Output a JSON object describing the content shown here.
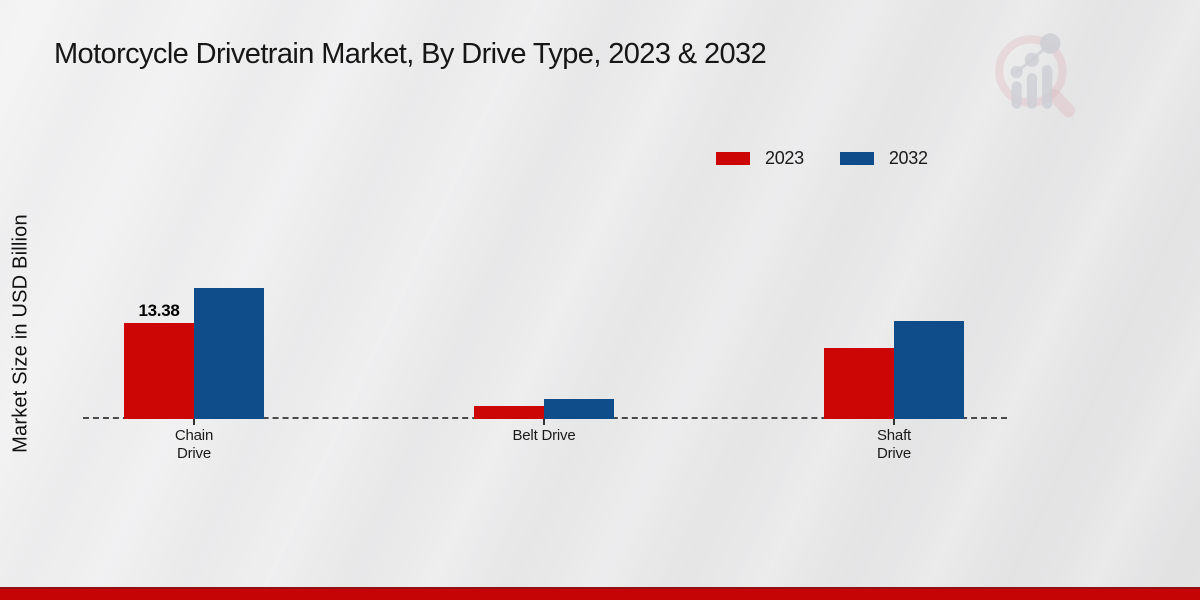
{
  "header": {
    "title": "Motorcycle Drivetrain Market, By Drive Type, 2023 & 2032"
  },
  "watermark": {
    "name": "market-research-magnifier-logo",
    "ring_color": "#d58f98",
    "bars_color": "#b9bcc4"
  },
  "chart_data": {
    "type": "bar",
    "title": "Motorcycle Drivetrain Market, By Drive Type, 2023 & 2032",
    "xlabel": "",
    "ylabel": "Market Size in USD Billion",
    "categories": [
      "Chain Drive",
      "Belt Drive",
      "Shaft Drive"
    ],
    "category_label_lines": [
      [
        "Chain",
        "Drive"
      ],
      [
        "Belt Drive"
      ],
      [
        "Shaft",
        "Drive"
      ]
    ],
    "series": [
      {
        "name": "2023",
        "color": "#cc0605",
        "values": [
          13.38,
          1.85,
          9.9
        ]
      },
      {
        "name": "2032",
        "color": "#0f4c8a",
        "values": [
          18.2,
          2.73,
          13.55
        ]
      }
    ],
    "annotations": [
      {
        "series_index": 0,
        "category_index": 0,
        "text": "13.38"
      }
    ],
    "baseline": {
      "style": "dashed",
      "color": "#4a4a4a"
    },
    "legend_position": "top-right",
    "grid": false,
    "ylim": [
      0,
      20
    ]
  },
  "footer": {
    "accent_bar_color": "#c50505"
  }
}
